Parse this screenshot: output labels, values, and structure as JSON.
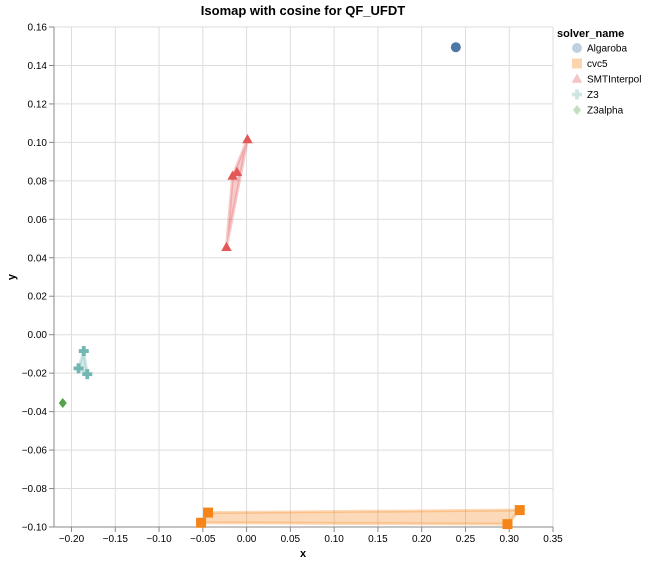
{
  "chart_data": {
    "type": "scatter",
    "title": "Isomap with cosine for QF_UFDT",
    "xlabel": "x",
    "ylabel": "y",
    "xlim": [
      -0.22,
      0.35
    ],
    "ylim": [
      -0.1,
      0.16
    ],
    "x_ticks": [
      -0.2,
      -0.15,
      -0.1,
      -0.05,
      0.0,
      0.05,
      0.1,
      0.15,
      0.2,
      0.25,
      0.3,
      0.35
    ],
    "x_tick_labels": [
      "−0.20",
      "−0.15",
      "−0.10",
      "−0.05",
      "0.00",
      "0.05",
      "0.10",
      "0.15",
      "0.20",
      "0.25",
      "0.30",
      "0.35"
    ],
    "y_ticks": [
      -0.1,
      -0.08,
      -0.06,
      -0.04,
      -0.02,
      0.0,
      0.02,
      0.04,
      0.06,
      0.08,
      0.1,
      0.12,
      0.14,
      0.16
    ],
    "y_tick_labels": [
      "−0.10",
      "−0.08",
      "−0.06",
      "−0.04",
      "−0.02",
      "0.00",
      "0.02",
      "0.04",
      "0.06",
      "0.08",
      "0.10",
      "0.12",
      "0.14",
      "0.16"
    ],
    "grid": true,
    "legend": {
      "title": "solver_name",
      "placement": "right"
    },
    "series": [
      {
        "name": "Algaroba",
        "shape": "circle",
        "color": "#4c78a8",
        "points": [
          [
            0.239,
            0.1495
          ]
        ]
      },
      {
        "name": "cvc5",
        "shape": "square",
        "color": "#f58518",
        "points": [
          [
            -0.052,
            -0.0978
          ],
          [
            -0.044,
            -0.0925
          ],
          [
            0.298,
            -0.0985
          ],
          [
            0.312,
            -0.0912
          ]
        ]
      },
      {
        "name": "SMTInterpol",
        "shape": "triangle",
        "color": "#e45756",
        "points": [
          [
            -0.023,
            0.0455
          ],
          [
            -0.016,
            0.0825
          ],
          [
            -0.011,
            0.0845
          ],
          [
            0.001,
            0.1015
          ]
        ]
      },
      {
        "name": "Z3",
        "shape": "cross",
        "color": "#72b7b2",
        "points": [
          [
            -0.186,
            -0.0085
          ],
          [
            -0.192,
            -0.0175
          ],
          [
            -0.182,
            -0.0205
          ]
        ]
      },
      {
        "name": "Z3alpha",
        "shape": "diamond",
        "color": "#54a24b",
        "points": [
          [
            -0.21,
            -0.0355
          ]
        ]
      }
    ]
  }
}
